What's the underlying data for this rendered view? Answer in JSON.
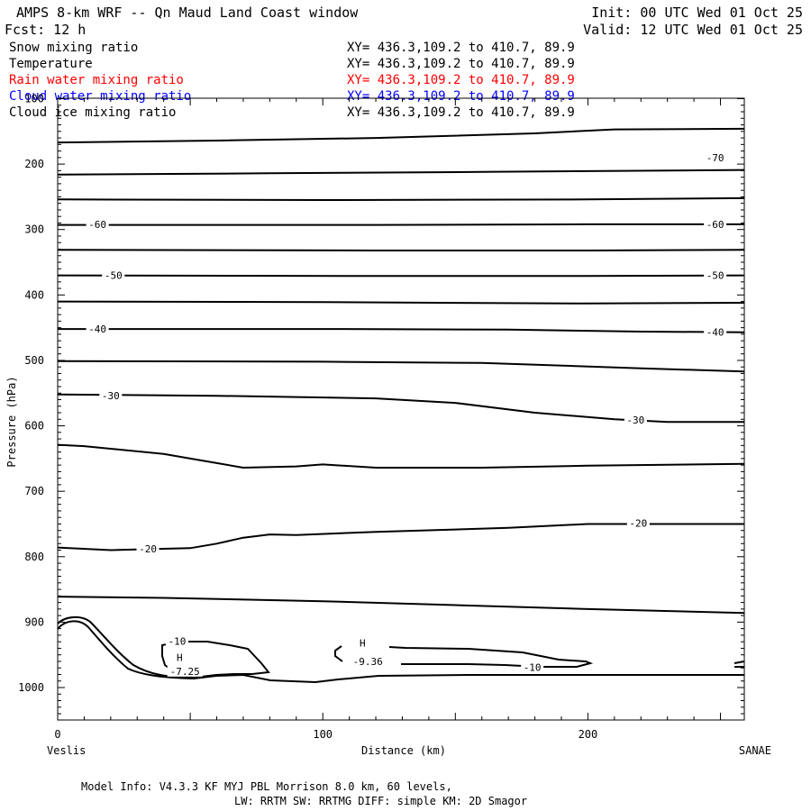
{
  "header": {
    "title": "AMPS 8-km WRF -- Qn Maud Land Coast window",
    "init": "Init: 00 UTC Wed 01 Oct 25",
    "fcst": "Fcst:   12 h",
    "valid": "Valid: 12 UTC Wed 01 Oct 25"
  },
  "legend": [
    {
      "label": "Snow mixing ratio",
      "xy": "XY= 436.3,109.2 to 410.7, 89.9",
      "color": "#000000"
    },
    {
      "label": "Temperature",
      "xy": "XY= 436.3,109.2 to 410.7, 89.9",
      "color": "#000000"
    },
    {
      "label": "Rain water mixing ratio",
      "xy": "XY= 436.3,109.2 to 410.7, 89.9",
      "color": "#ff0000"
    },
    {
      "label": "Cloud water mixing ratio",
      "xy": "XY= 436.3,109.2 to 410.7, 89.9",
      "color": "#0000ff"
    },
    {
      "label": "Cloud ice mixing ratio",
      "xy": "XY= 436.3,109.2 to 410.7, 89.9",
      "color": "#000000"
    }
  ],
  "footer": {
    "line1": "Model Info: V4.3.3   KF      MYJ PBL  Morrison            8.0 km,  60 levels,",
    "line2": "LW: RRTM SW: RRTMG   DIFF: simple KM: 2D Smagor"
  },
  "chart_data": {
    "type": "line",
    "xlabel": "Distance (km)",
    "ylabel": "Pressure (hPa)",
    "xlim": [
      0,
      259
    ],
    "ylim": [
      1050,
      100
    ],
    "x_ticks": [
      0,
      100,
      200
    ],
    "y_ticks": [
      100,
      200,
      300,
      400,
      500,
      600,
      700,
      800,
      900,
      1000
    ],
    "x_end_labels": {
      "left": "Veslis",
      "right": "SANAE"
    },
    "series": [
      {
        "x": [
          0,
          60,
          120,
          180,
          210,
          259
        ],
        "y": [
          167,
          164,
          160,
          153,
          147,
          146
        ]
      },
      {
        "x": [
          0,
          80,
          160,
          259
        ],
        "y": [
          216,
          214,
          212,
          209
        ]
      },
      {
        "x": [
          0,
          100,
          200,
          259
        ],
        "y": [
          254,
          255,
          254,
          252
        ]
      },
      {
        "x": [
          0,
          120,
          200,
          259
        ],
        "y": [
          293,
          293,
          292,
          292
        ]
      },
      {
        "x": [
          0,
          120,
          200,
          259
        ],
        "y": [
          331,
          332,
          332,
          331
        ]
      },
      {
        "x": [
          0,
          120,
          200,
          259
        ],
        "y": [
          370,
          371,
          371,
          370
        ]
      },
      {
        "x": [
          0,
          100,
          200,
          259
        ],
        "y": [
          410,
          411,
          413,
          412
        ]
      },
      {
        "x": [
          0,
          100,
          170,
          220,
          259
        ],
        "y": [
          452,
          452,
          453,
          456,
          457
        ]
      },
      {
        "x": [
          0,
          100,
          160,
          220,
          259
        ],
        "y": [
          501,
          502,
          504,
          512,
          517
        ]
      },
      {
        "x": [
          0,
          60,
          120,
          150,
          180,
          210,
          230,
          259
        ],
        "y": [
          552,
          554,
          558,
          565,
          580,
          590,
          594,
          594
        ]
      },
      {
        "x": [
          0,
          10,
          40,
          60,
          70,
          90,
          100,
          120,
          160,
          200,
          259
        ],
        "y": [
          629,
          631,
          643,
          657,
          664,
          662,
          659,
          664,
          664,
          661,
          658
        ]
      },
      {
        "x": [
          0,
          20,
          50,
          60,
          70,
          80,
          90,
          120,
          170,
          200,
          259
        ],
        "y": [
          786,
          790,
          787,
          780,
          771,
          766,
          767,
          762,
          756,
          750,
          750
        ]
      },
      {
        "x": [
          0,
          40,
          100,
          150,
          200,
          259
        ],
        "y": [
          861,
          863,
          868,
          874,
          880,
          886
        ]
      }
    ],
    "contour_labels": [
      {
        "text": "-70",
        "x": 248,
        "y": 190
      },
      {
        "text": "-60",
        "x": 15,
        "y": 292
      },
      {
        "text": "-60",
        "x": 248,
        "y": 292
      },
      {
        "text": "-50",
        "x": 21,
        "y": 370
      },
      {
        "text": "-50",
        "x": 248,
        "y": 370
      },
      {
        "text": "-40",
        "x": 15,
        "y": 452
      },
      {
        "text": "-40",
        "x": 248,
        "y": 457
      },
      {
        "text": "-30",
        "x": 20,
        "y": 554
      },
      {
        "text": "-30",
        "x": 218,
        "y": 591
      },
      {
        "text": "-20",
        "x": 34,
        "y": 788
      },
      {
        "text": "-20",
        "x": 219,
        "y": 749
      },
      {
        "text": "-10",
        "x": 45,
        "y": 929
      },
      {
        "text": "-10",
        "x": 179,
        "y": 969
      },
      {
        "text": "H",
        "x": 46,
        "y": 954
      },
      {
        "text": "-7.25",
        "x": 48,
        "y": 975
      },
      {
        "text": "H",
        "x": 115,
        "y": 932
      },
      {
        "text": "-9.36",
        "x": 117,
        "y": 960
      }
    ]
  }
}
